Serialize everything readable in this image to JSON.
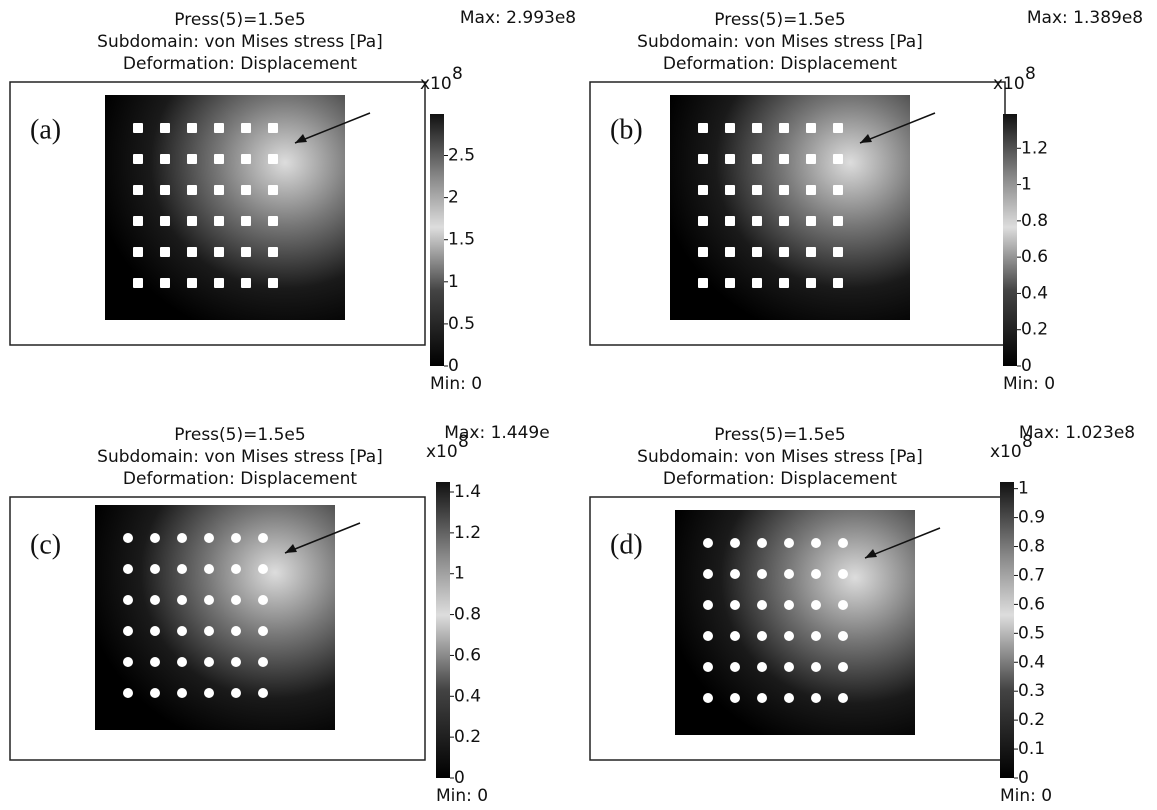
{
  "panels": [
    {
      "title": [
        "Press(5)=1.5e5",
        "Subdomain: von Mises stress [Pa]",
        "Deformation: Displacement"
      ],
      "label": "(a)",
      "max_label": "Max: 2.993e8",
      "min_label": "Min: 0",
      "scale_base": "x10",
      "scale_exp": "8",
      "colorbar": {
        "range": [
          0,
          2.993
        ],
        "ticks": [
          0,
          0.5,
          1,
          1.5,
          2,
          2.5
        ]
      }
    },
    {
      "title": [
        "Press(5)=1.5e5",
        "Subdomain: von Mises stress [Pa]",
        "Deformation: Displacement"
      ],
      "label": "(b)",
      "max_label": "Max: 1.389e8",
      "min_label": "Min: 0",
      "scale_base": "x10",
      "scale_exp": "8",
      "colorbar": {
        "range": [
          0,
          1.389
        ],
        "ticks": [
          0,
          0.2,
          0.4,
          0.6,
          0.8,
          1,
          1.2
        ]
      }
    },
    {
      "title": [
        "Press(5)=1.5e5",
        "Subdomain: von Mises stress [Pa]",
        "Deformation: Displacement"
      ],
      "label": "(c)",
      "max_label": "Max: 1.449e",
      "min_label": "Min: 0",
      "scale_base": "x10",
      "scale_exp": "8",
      "colorbar": {
        "range": [
          0,
          1.449
        ],
        "ticks": [
          0,
          0.2,
          0.4,
          0.6,
          0.8,
          1,
          1.2,
          1.4
        ]
      }
    },
    {
      "title": [
        "Press(5)=1.5e5",
        "Subdomain: von Mises stress [Pa]",
        "Deformation: Displacement"
      ],
      "label": "(d)",
      "max_label": "Max: 1.023e8",
      "min_label": "Min: 0",
      "scale_base": "x10",
      "scale_exp": "8",
      "colorbar": {
        "range": [
          0,
          1.023
        ],
        "ticks": [
          0,
          0.1,
          0.2,
          0.3,
          0.4,
          0.5,
          0.6,
          0.7,
          0.8,
          0.9,
          1
        ]
      }
    }
  ]
}
